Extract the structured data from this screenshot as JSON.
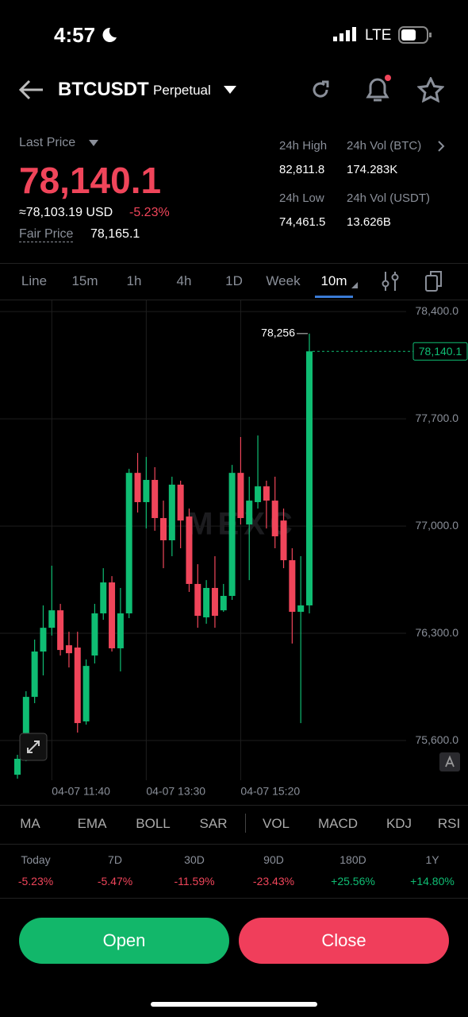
{
  "status_bar": {
    "time": "4:57",
    "network": "LTE"
  },
  "header": {
    "symbol": "BTCUSDT",
    "contract": "Perpetual"
  },
  "ticker": {
    "last_price_label": "Last Price",
    "last_price": "78,140.1",
    "usd_price": "≈78,103.19 USD",
    "change": "-5.23%",
    "fair_price_label": "Fair Price",
    "fair_price": "78,165.1",
    "stats": [
      {
        "label": "24h High",
        "value": "82,811.8"
      },
      {
        "label": "24h Vol (BTC)",
        "value": "174.283K"
      },
      {
        "label": "24h Low",
        "value": "74,461.5"
      },
      {
        "label": "24h Vol (USDT)",
        "value": "13.626B"
      }
    ]
  },
  "intervals": [
    "Line",
    "15m",
    "1h",
    "4h",
    "1D",
    "Week",
    "10m"
  ],
  "chart_data": {
    "type": "candlestick",
    "watermark": "MEXC",
    "categories": [
      null,
      null,
      null,
      null,
      "04-07 11:40",
      null,
      null,
      null,
      null,
      null,
      null,
      null,
      null,
      null,
      null,
      "04-07 13:30",
      null,
      null,
      null,
      null,
      null,
      null,
      null,
      null,
      null,
      null,
      "04-07 15:20",
      null,
      null,
      null,
      null,
      null,
      null,
      null,
      null
    ],
    "open": [
      75377,
      75481,
      75885,
      76181,
      76336,
      76450,
      76222,
      76207,
      75725,
      76155,
      76430,
      76632,
      76202,
      76430,
      77347,
      77156,
      77301,
      77052,
      76907,
      77270,
      77062,
      76622,
      76404,
      76596,
      76450,
      76544,
      77347,
      77010,
      77156,
      77259,
      77166,
      77036,
      76777,
      76440,
      76482
    ],
    "high": [
      75507,
      75922,
      76259,
      76482,
      76741,
      76492,
      76310,
      76310,
      76129,
      76492,
      76725,
      76673,
      76596,
      77373,
      77477,
      77451,
      77384,
      77166,
      77322,
      77296,
      77114,
      76751,
      76647,
      76803,
      76622,
      77399,
      77581,
      77322,
      77591,
      77296,
      77322,
      77114,
      76855,
      76803,
      78256
    ],
    "low": [
      75351,
      75465,
      75844,
      76025,
      76285,
      76155,
      76077,
      75652,
      75704,
      76103,
      76388,
      76181,
      76051,
      76399,
      77088,
      76984,
      76969,
      76725,
      76803,
      76855,
      76570,
      76336,
      76362,
      76336,
      76440,
      76518,
      77010,
      76647,
      77114,
      76984,
      76855,
      76725,
      76233,
      75714,
      76430
    ],
    "close": [
      75481,
      75885,
      76181,
      76336,
      76450,
      76191,
      76170,
      75714,
      76087,
      76430,
      76632,
      76202,
      76430,
      77347,
      77156,
      77301,
      77052,
      76907,
      77270,
      77036,
      76622,
      76414,
      76596,
      76414,
      76544,
      77347,
      77052,
      77166,
      77259,
      77166,
      76933,
      76777,
      76440,
      76482,
      78140.1
    ],
    "up_color": "#0fbd73",
    "down_color": "#f0455a",
    "ylim": [
      75341,
      78473
    ],
    "yticks": [
      {
        "value": 75600,
        "label": "75,600.0"
      },
      {
        "value": 76300,
        "label": "76,300.0"
      },
      {
        "value": 77000,
        "label": "77,000.0"
      },
      {
        "value": 77700,
        "label": "77,700.0"
      },
      {
        "value": 78400,
        "label": "78,400.0"
      }
    ],
    "grid": true,
    "annotations": [
      {
        "value": 78256,
        "label": "78,256"
      },
      {
        "value": 78140.1,
        "label": "78,140.1"
      }
    ]
  },
  "indicators": [
    "MA",
    "EMA",
    "BOLL",
    "SAR",
    "VOL",
    "MACD",
    "KDJ",
    "RSI"
  ],
  "performance": [
    {
      "period": "Today",
      "change": "-5.23%"
    },
    {
      "period": "7D",
      "change": "-5.47%"
    },
    {
      "period": "30D",
      "change": "-11.59%"
    },
    {
      "period": "90D",
      "change": "-23.43%"
    },
    {
      "period": "180D",
      "change": "+25.56%"
    },
    {
      "period": "1Y",
      "change": "+14.80%"
    }
  ],
  "buttons": {
    "open": "Open",
    "close": "Close"
  }
}
